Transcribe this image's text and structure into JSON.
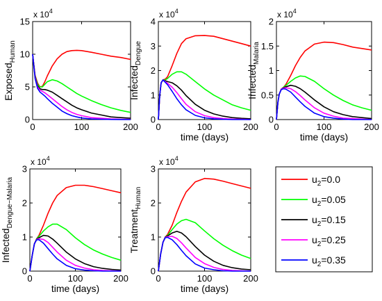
{
  "chart_data": [
    {
      "type": "line",
      "ylabel": "Exposed",
      "ylabel_sub": "Human",
      "xlabel": "",
      "y_exponent_label": "x 10",
      "y_exponent": "4",
      "xlim": [
        0,
        200
      ],
      "ylim": [
        0,
        15
      ],
      "xticks": [
        0,
        100,
        200
      ],
      "yticks": [
        0,
        5,
        10,
        15
      ],
      "x": [
        0,
        5,
        10,
        15,
        20,
        25,
        30,
        40,
        50,
        60,
        70,
        80,
        90,
        100,
        120,
        140,
        160,
        180,
        200
      ],
      "series": [
        {
          "name": "u2=0.0",
          "color": "#ff0000",
          "values": [
            10.0,
            6.8,
            5.6,
            5.0,
            5.1,
            5.8,
            6.7,
            8.2,
            9.3,
            10.0,
            10.4,
            10.55,
            10.6,
            10.55,
            10.3,
            10.0,
            9.7,
            9.5,
            9.2
          ]
        },
        {
          "name": "u2=0.05",
          "color": "#00ff00",
          "values": [
            10.0,
            6.7,
            5.4,
            5.0,
            5.0,
            5.4,
            5.8,
            6.1,
            5.9,
            5.5,
            5.0,
            4.5,
            4.0,
            3.6,
            2.9,
            2.3,
            1.8,
            1.4,
            1.1
          ]
        },
        {
          "name": "u2=0.15",
          "color": "#000000",
          "values": [
            10.0,
            6.6,
            5.2,
            4.7,
            4.6,
            4.6,
            4.5,
            4.2,
            3.7,
            3.2,
            2.7,
            2.2,
            1.8,
            1.5,
            1.0,
            0.7,
            0.4,
            0.3,
            0.2
          ]
        },
        {
          "name": "u2=0.25",
          "color": "#ff00ff",
          "values": [
            10.0,
            6.5,
            5.0,
            4.5,
            4.3,
            4.1,
            3.8,
            3.2,
            2.6,
            2.0,
            1.5,
            1.1,
            0.8,
            0.6,
            0.3,
            0.2,
            0.1,
            0.05,
            0.03
          ]
        },
        {
          "name": "u2=0.35",
          "color": "#0000ff",
          "values": [
            10.0,
            6.3,
            4.8,
            4.2,
            3.9,
            3.6,
            3.2,
            2.5,
            1.9,
            1.3,
            0.9,
            0.6,
            0.4,
            0.25,
            0.1,
            0.05,
            0.02,
            0.01,
            0.0
          ]
        }
      ]
    },
    {
      "type": "line",
      "ylabel": "Infected",
      "ylabel_sub": "Dengue",
      "xlabel": "time (days)",
      "y_exponent_label": "x 10",
      "y_exponent": "4",
      "xlim": [
        0,
        200
      ],
      "ylim": [
        0,
        4
      ],
      "xticks": [
        0,
        100,
        200
      ],
      "yticks": [
        0,
        1,
        2,
        3,
        4
      ],
      "x": [
        0,
        3,
        6,
        10,
        15,
        20,
        30,
        40,
        50,
        60,
        80,
        100,
        120,
        140,
        160,
        180,
        200
      ],
      "series": [
        {
          "name": "u2=0.0",
          "color": "#ff0000",
          "values": [
            0,
            1.0,
            1.5,
            1.62,
            1.65,
            1.75,
            2.2,
            2.7,
            3.1,
            3.3,
            3.42,
            3.43,
            3.4,
            3.3,
            3.2,
            3.1,
            3.0
          ]
        },
        {
          "name": "u2=0.05",
          "color": "#00ff00",
          "values": [
            0,
            1.0,
            1.5,
            1.62,
            1.62,
            1.68,
            1.85,
            1.95,
            1.95,
            1.85,
            1.55,
            1.25,
            1.0,
            0.8,
            0.6,
            0.48,
            0.38
          ]
        },
        {
          "name": "u2=0.15",
          "color": "#000000",
          "values": [
            0,
            1.0,
            1.5,
            1.62,
            1.58,
            1.55,
            1.5,
            1.38,
            1.2,
            0.98,
            0.62,
            0.38,
            0.23,
            0.14,
            0.08,
            0.05,
            0.03
          ]
        },
        {
          "name": "u2=0.25",
          "color": "#ff00ff",
          "values": [
            0,
            1.0,
            1.5,
            1.62,
            1.55,
            1.48,
            1.32,
            1.1,
            0.85,
            0.62,
            0.32,
            0.16,
            0.08,
            0.04,
            0.02,
            0.01,
            0.0
          ]
        },
        {
          "name": "u2=0.35",
          "color": "#0000ff",
          "values": [
            0,
            1.0,
            1.5,
            1.62,
            1.52,
            1.42,
            1.15,
            0.85,
            0.6,
            0.4,
            0.17,
            0.07,
            0.03,
            0.01,
            0.0,
            0.0,
            0.0
          ]
        }
      ]
    },
    {
      "type": "line",
      "ylabel": "Infected",
      "ylabel_sub": "Malaria",
      "xlabel": "time (days)",
      "y_exponent_label": "x 10",
      "y_exponent": "4",
      "xlim": [
        0,
        200
      ],
      "ylim": [
        0,
        2
      ],
      "xticks": [
        0,
        100,
        200
      ],
      "yticks": [
        0,
        0.5,
        1,
        1.5,
        2
      ],
      "x": [
        0,
        3,
        6,
        10,
        15,
        20,
        30,
        40,
        50,
        60,
        80,
        100,
        120,
        140,
        160,
        180,
        200
      ],
      "series": [
        {
          "name": "u2=0.0",
          "color": "#ff0000",
          "values": [
            0,
            0.35,
            0.52,
            0.62,
            0.66,
            0.72,
            0.9,
            1.1,
            1.27,
            1.4,
            1.54,
            1.58,
            1.57,
            1.53,
            1.48,
            1.45,
            1.42
          ]
        },
        {
          "name": "u2=0.05",
          "color": "#00ff00",
          "values": [
            0,
            0.35,
            0.52,
            0.62,
            0.66,
            0.7,
            0.78,
            0.85,
            0.89,
            0.88,
            0.78,
            0.63,
            0.5,
            0.39,
            0.3,
            0.24,
            0.19
          ]
        },
        {
          "name": "u2=0.15",
          "color": "#000000",
          "values": [
            0,
            0.35,
            0.52,
            0.62,
            0.65,
            0.67,
            0.7,
            0.68,
            0.63,
            0.56,
            0.4,
            0.26,
            0.16,
            0.1,
            0.06,
            0.04,
            0.02
          ]
        },
        {
          "name": "u2=0.25",
          "color": "#ff00ff",
          "values": [
            0,
            0.35,
            0.52,
            0.62,
            0.64,
            0.65,
            0.63,
            0.57,
            0.49,
            0.4,
            0.24,
            0.13,
            0.07,
            0.03,
            0.02,
            0.01,
            0.0
          ]
        },
        {
          "name": "u2=0.35",
          "color": "#0000ff",
          "values": [
            0,
            0.35,
            0.52,
            0.61,
            0.63,
            0.62,
            0.56,
            0.46,
            0.36,
            0.27,
            0.13,
            0.06,
            0.03,
            0.01,
            0.0,
            0.0,
            0.0
          ]
        }
      ]
    },
    {
      "type": "line",
      "ylabel": "Infected",
      "ylabel_sub": "Dengue−Malaria",
      "xlabel": "time (days)",
      "y_exponent_label": "x 10",
      "y_exponent": "4",
      "xlim": [
        0,
        200
      ],
      "ylim": [
        0,
        3
      ],
      "xticks": [
        0,
        100,
        200
      ],
      "yticks": [
        0,
        1,
        2,
        3
      ],
      "x": [
        0,
        5,
        10,
        15,
        20,
        30,
        40,
        50,
        60,
        80,
        100,
        120,
        140,
        160,
        180,
        200
      ],
      "series": [
        {
          "name": "u2=0.0",
          "color": "#ff0000",
          "values": [
            0,
            0.45,
            0.8,
            0.95,
            1.05,
            1.35,
            1.7,
            2.0,
            2.22,
            2.45,
            2.52,
            2.52,
            2.48,
            2.42,
            2.36,
            2.3
          ]
        },
        {
          "name": "u2=0.05",
          "color": "#00ff00",
          "values": [
            0,
            0.45,
            0.8,
            0.95,
            1.02,
            1.18,
            1.3,
            1.38,
            1.38,
            1.22,
            0.98,
            0.78,
            0.62,
            0.5,
            0.4,
            0.32
          ]
        },
        {
          "name": "u2=0.15",
          "color": "#000000",
          "values": [
            0,
            0.45,
            0.8,
            0.94,
            0.98,
            1.05,
            1.03,
            0.94,
            0.82,
            0.56,
            0.36,
            0.22,
            0.13,
            0.08,
            0.05,
            0.03
          ]
        },
        {
          "name": "u2=0.25",
          "color": "#ff00ff",
          "values": [
            0,
            0.45,
            0.8,
            0.93,
            0.95,
            0.93,
            0.84,
            0.7,
            0.56,
            0.32,
            0.17,
            0.09,
            0.04,
            0.02,
            0.01,
            0.0
          ]
        },
        {
          "name": "u2=0.35",
          "color": "#0000ff",
          "values": [
            0,
            0.45,
            0.8,
            0.92,
            0.92,
            0.82,
            0.66,
            0.5,
            0.36,
            0.17,
            0.07,
            0.03,
            0.01,
            0.0,
            0.0,
            0.0
          ]
        }
      ]
    },
    {
      "type": "line",
      "ylabel": "Treatment",
      "ylabel_sub": "Human",
      "xlabel": "time (days)",
      "y_exponent_label": "x 10",
      "y_exponent": "4",
      "xlim": [
        0,
        200
      ],
      "ylim": [
        0,
        3
      ],
      "xticks": [
        0,
        100,
        200
      ],
      "yticks": [
        0,
        1,
        2,
        3
      ],
      "x": [
        0,
        5,
        10,
        15,
        20,
        30,
        40,
        50,
        60,
        80,
        100,
        120,
        140,
        160,
        180,
        200
      ],
      "series": [
        {
          "name": "u2=0.0",
          "color": "#ff0000",
          "values": [
            0,
            0.5,
            0.85,
            1.0,
            1.08,
            1.35,
            1.72,
            2.05,
            2.32,
            2.62,
            2.72,
            2.7,
            2.64,
            2.57,
            2.5,
            2.43
          ]
        },
        {
          "name": "u2=0.05",
          "color": "#00ff00",
          "values": [
            0,
            0.5,
            0.85,
            1.0,
            1.05,
            1.22,
            1.38,
            1.48,
            1.52,
            1.42,
            1.18,
            0.95,
            0.76,
            0.6,
            0.47,
            0.37
          ]
        },
        {
          "name": "u2=0.15",
          "color": "#000000",
          "values": [
            0,
            0.5,
            0.85,
            1.0,
            1.03,
            1.12,
            1.17,
            1.12,
            1.01,
            0.72,
            0.47,
            0.29,
            0.17,
            0.1,
            0.06,
            0.04
          ]
        },
        {
          "name": "u2=0.25",
          "color": "#ff00ff",
          "values": [
            0,
            0.5,
            0.85,
            0.99,
            1.01,
            1.02,
            0.96,
            0.83,
            0.68,
            0.4,
            0.22,
            0.11,
            0.05,
            0.02,
            0.01,
            0.0
          ]
        },
        {
          "name": "u2=0.35",
          "color": "#0000ff",
          "values": [
            0,
            0.5,
            0.85,
            0.98,
            0.99,
            0.92,
            0.78,
            0.61,
            0.45,
            0.21,
            0.09,
            0.04,
            0.01,
            0.0,
            0.0,
            0.0
          ]
        }
      ]
    }
  ],
  "legend": {
    "entries": [
      {
        "prefix": "u",
        "sub": "2",
        "suffix": "=0.0",
        "color": "#ff0000"
      },
      {
        "prefix": "u",
        "sub": "2",
        "suffix": "=0.05",
        "color": "#00ff00"
      },
      {
        "prefix": "u",
        "sub": "2",
        "suffix": "=0.15",
        "color": "#000000"
      },
      {
        "prefix": "u",
        "sub": "2",
        "suffix": "=0.25",
        "color": "#ff00ff"
      },
      {
        "prefix": "u",
        "sub": "2",
        "suffix": "=0.35",
        "color": "#0000ff"
      }
    ]
  }
}
